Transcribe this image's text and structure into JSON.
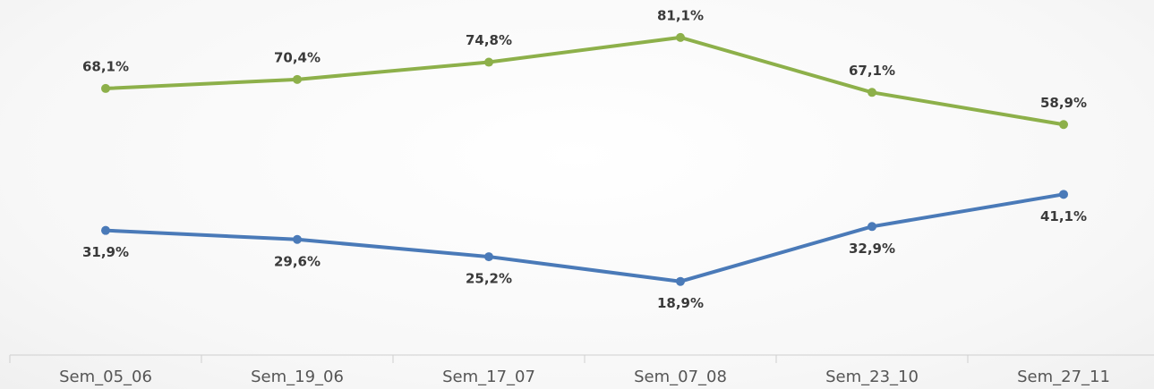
{
  "chart_data": {
    "type": "line",
    "categories": [
      "Sem_05_06",
      "Sem_19_06",
      "Sem_17_07",
      "Sem_07_08",
      "Sem_23_10",
      "Sem_27_11"
    ],
    "series": [
      {
        "color": "#8db04a",
        "values": [
          68.1,
          70.4,
          74.8,
          81.1,
          67.1,
          58.9
        ],
        "value_labels": [
          "68,1%",
          "70,4%",
          "74,8%",
          "81,1%",
          "67,1%",
          "58,9%"
        ]
      },
      {
        "color": "#4a7ab8",
        "values": [
          31.9,
          29.6,
          25.2,
          18.9,
          32.9,
          41.1
        ],
        "value_labels": [
          "31,9%",
          "29,6%",
          "25,2%",
          "18,9%",
          "32,9%",
          "41,1%"
        ]
      }
    ],
    "ylim": [
      0,
      100
    ]
  }
}
